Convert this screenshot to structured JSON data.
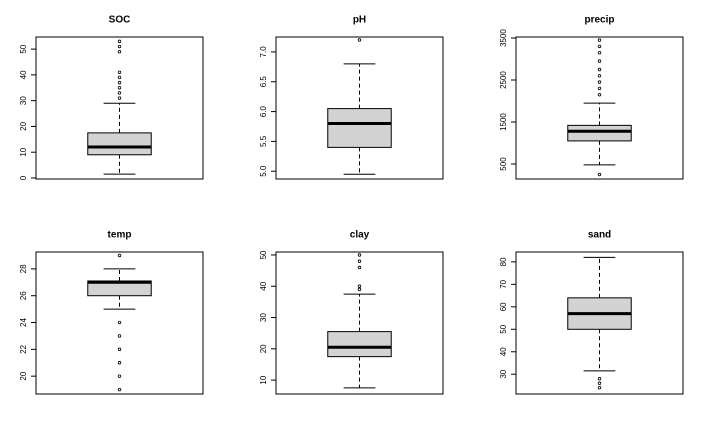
{
  "chart_data": [
    {
      "type": "box",
      "title": "SOC",
      "color": "#d3d3d3",
      "ylim": [
        -0.4,
        54.7
      ],
      "yticks": [
        0,
        10,
        20,
        30,
        40,
        50
      ],
      "whisker_low": 1.5,
      "q1": 9,
      "median": 12,
      "q3": 17.5,
      "whisker_high": 29,
      "outliers": [
        31,
        33,
        35,
        37,
        39,
        41,
        49,
        51,
        53
      ]
    },
    {
      "type": "box",
      "title": "pH",
      "color": "#d3d3d3",
      "ylim": [
        4.87,
        7.25
      ],
      "yticks": [
        {
          "value": 5,
          "label": "5.0"
        },
        5.5,
        {
          "value": 6,
          "label": "6.0"
        },
        6.5,
        {
          "value": 7,
          "label": "7.0"
        }
      ],
      "whisker_low": 4.95,
      "q1": 5.4,
      "median": 5.8,
      "q3": 6.05,
      "whisker_high": 6.8,
      "outliers": [
        7.2
      ]
    },
    {
      "type": "box",
      "title": "precip",
      "color": "#d3d3d3",
      "ylim": [
        143,
        3524
      ],
      "yticks": [
        500,
        1500,
        2500,
        3500
      ],
      "whisker_low": 480,
      "q1": 1050,
      "median": 1280,
      "q3": 1420,
      "whisker_high": 1950,
      "outliers": [
        250,
        2150,
        2300,
        2450,
        2600,
        2750,
        2950,
        3150,
        3300,
        3450
      ]
    },
    {
      "type": "box",
      "title": "temp",
      "color": "#d3d3d3",
      "ylim": [
        18.67,
        29.26
      ],
      "yticks": [
        20,
        22,
        24,
        26,
        28
      ],
      "whisker_low": 25,
      "q1": 26,
      "median": 27,
      "q3": 27.1,
      "whisker_high": 28,
      "outliers": [
        29,
        24,
        23,
        22,
        21,
        20,
        19
      ]
    },
    {
      "type": "box",
      "title": "clay",
      "color": "#d3d3d3",
      "ylim": [
        5.56,
        50.95
      ],
      "yticks": [
        10,
        20,
        30,
        40,
        50
      ],
      "whisker_low": 7.5,
      "q1": 17.5,
      "median": 20.5,
      "q3": 25.5,
      "whisker_high": 37.5,
      "outliers": [
        39,
        40,
        46,
        48,
        50
      ]
    },
    {
      "type": "box",
      "title": "sand",
      "color": "#d3d3d3",
      "ylim": [
        21.2,
        84.4
      ],
      "yticks": [
        30,
        40,
        50,
        60,
        70,
        80
      ],
      "whisker_low": 31.5,
      "q1": 50,
      "median": 57,
      "q3": 64,
      "whisker_high": 82,
      "outliers": [
        24,
        26,
        28
      ]
    }
  ]
}
